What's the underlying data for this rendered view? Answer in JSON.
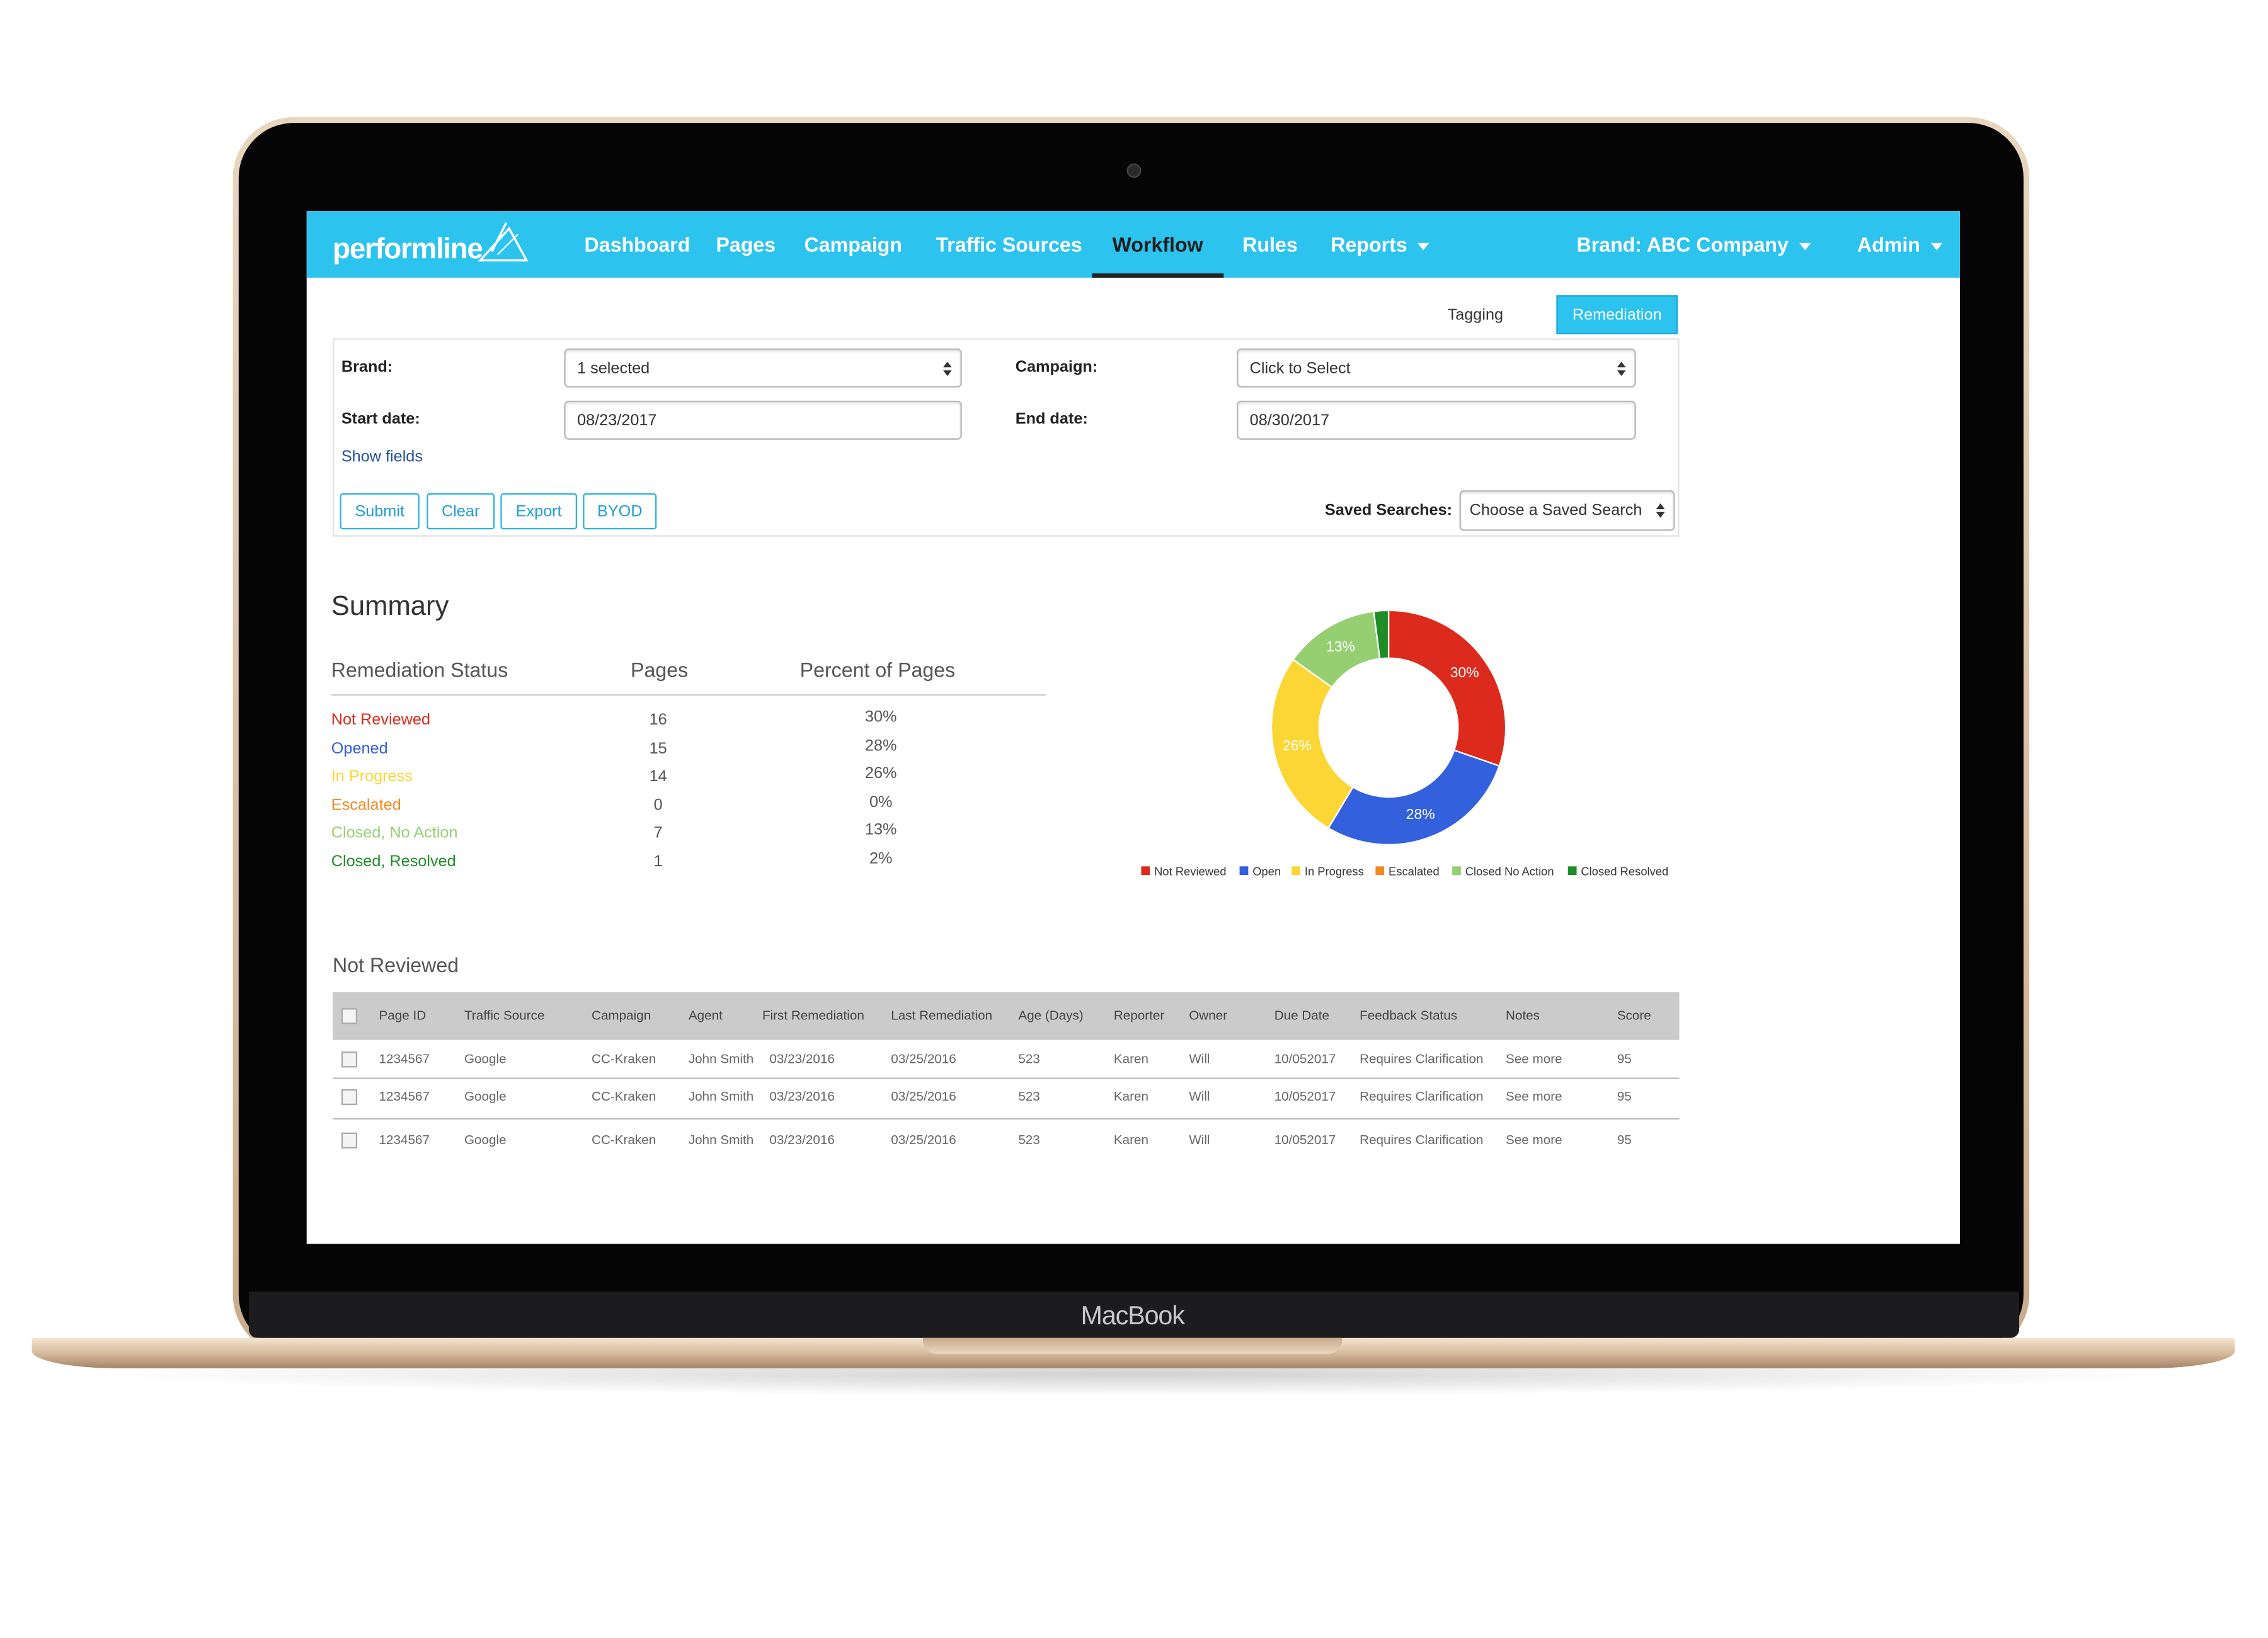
{
  "device": {
    "label": "MacBook"
  },
  "nav": {
    "logo": "performline",
    "items": [
      "Dashboard",
      "Pages",
      "Campaign",
      "Traffic Sources",
      "Workflow",
      "Rules",
      "Reports"
    ],
    "brand": "Brand: ABC Company",
    "user": "Admin"
  },
  "tabs": [
    "Tagging",
    "Remediation"
  ],
  "filters": {
    "brand_label": "Brand:",
    "brand_value": "1 selected",
    "campaign_label": "Campaign:",
    "campaign_value": "Click to Select",
    "start_label": "Start date:",
    "start_value": "08/23/2017",
    "end_label": "End date:",
    "end_value": "08/30/2017",
    "show_fields": "Show fields",
    "buttons": [
      "Submit",
      "Clear",
      "Export",
      "BYOD"
    ],
    "saved_label": "Saved Searches:",
    "saved_value": "Choose a Saved Search"
  },
  "summary": {
    "title": "Summary",
    "headers": [
      "Remediation Status",
      "Pages",
      "Percent of Pages"
    ],
    "rows": [
      [
        "Not Reviewed",
        16,
        "30%"
      ],
      [
        "Opened",
        15,
        "28%"
      ],
      [
        "In Progress",
        14,
        "26%"
      ],
      [
        "Escalated",
        0,
        "0%"
      ],
      [
        "Closed, No Action",
        7,
        "13%"
      ],
      [
        "Closed, Resolved",
        1,
        "2%"
      ]
    ]
  },
  "chart_data": {
    "type": "pie",
    "donut": true,
    "legend": "bottom",
    "categories": [
      "Not Reviewed",
      "Open",
      "In Progress",
      "Escalated",
      "Closed No Action",
      "Closed Resolved"
    ],
    "values": [
      30,
      28,
      26,
      0,
      13,
      2
    ],
    "value_labels": [
      "30%",
      "28%",
      "26%",
      null,
      "13%",
      null
    ],
    "colors": [
      "#dc2a1c",
      "#3360dc",
      "#fbd634",
      "#f48a22",
      "#95cf72",
      "#1e8c27"
    ]
  },
  "table": {
    "title": "Not Reviewed",
    "columns": [
      "Page ID",
      "Traffic Source",
      "Campaign",
      "Agent",
      "First Remediation",
      "Last Remediation",
      "Age (Days)",
      "Reporter",
      "Owner",
      "Due Date",
      "Feedback Status",
      "Notes",
      "Score"
    ],
    "rows": [
      [
        "1234567",
        "Google",
        "CC-Kraken",
        "John Smith",
        "03/23/2016",
        "03/25/2016",
        "523",
        "Karen",
        "Will",
        "10/052017",
        "Requires Clarification",
        "See more",
        "95"
      ],
      [
        "1234567",
        "Google",
        "CC-Kraken",
        "John Smith",
        "03/23/2016",
        "03/25/2016",
        "523",
        "Karen",
        "Will",
        "10/052017",
        "Requires Clarification",
        "See more",
        "95"
      ],
      [
        "1234567",
        "Google",
        "CC-Kraken",
        "John Smith",
        "03/23/2016",
        "03/25/2016",
        "523",
        "Karen",
        "Will",
        "10/052017",
        "Requires Clarification",
        "See more",
        "95"
      ]
    ]
  }
}
